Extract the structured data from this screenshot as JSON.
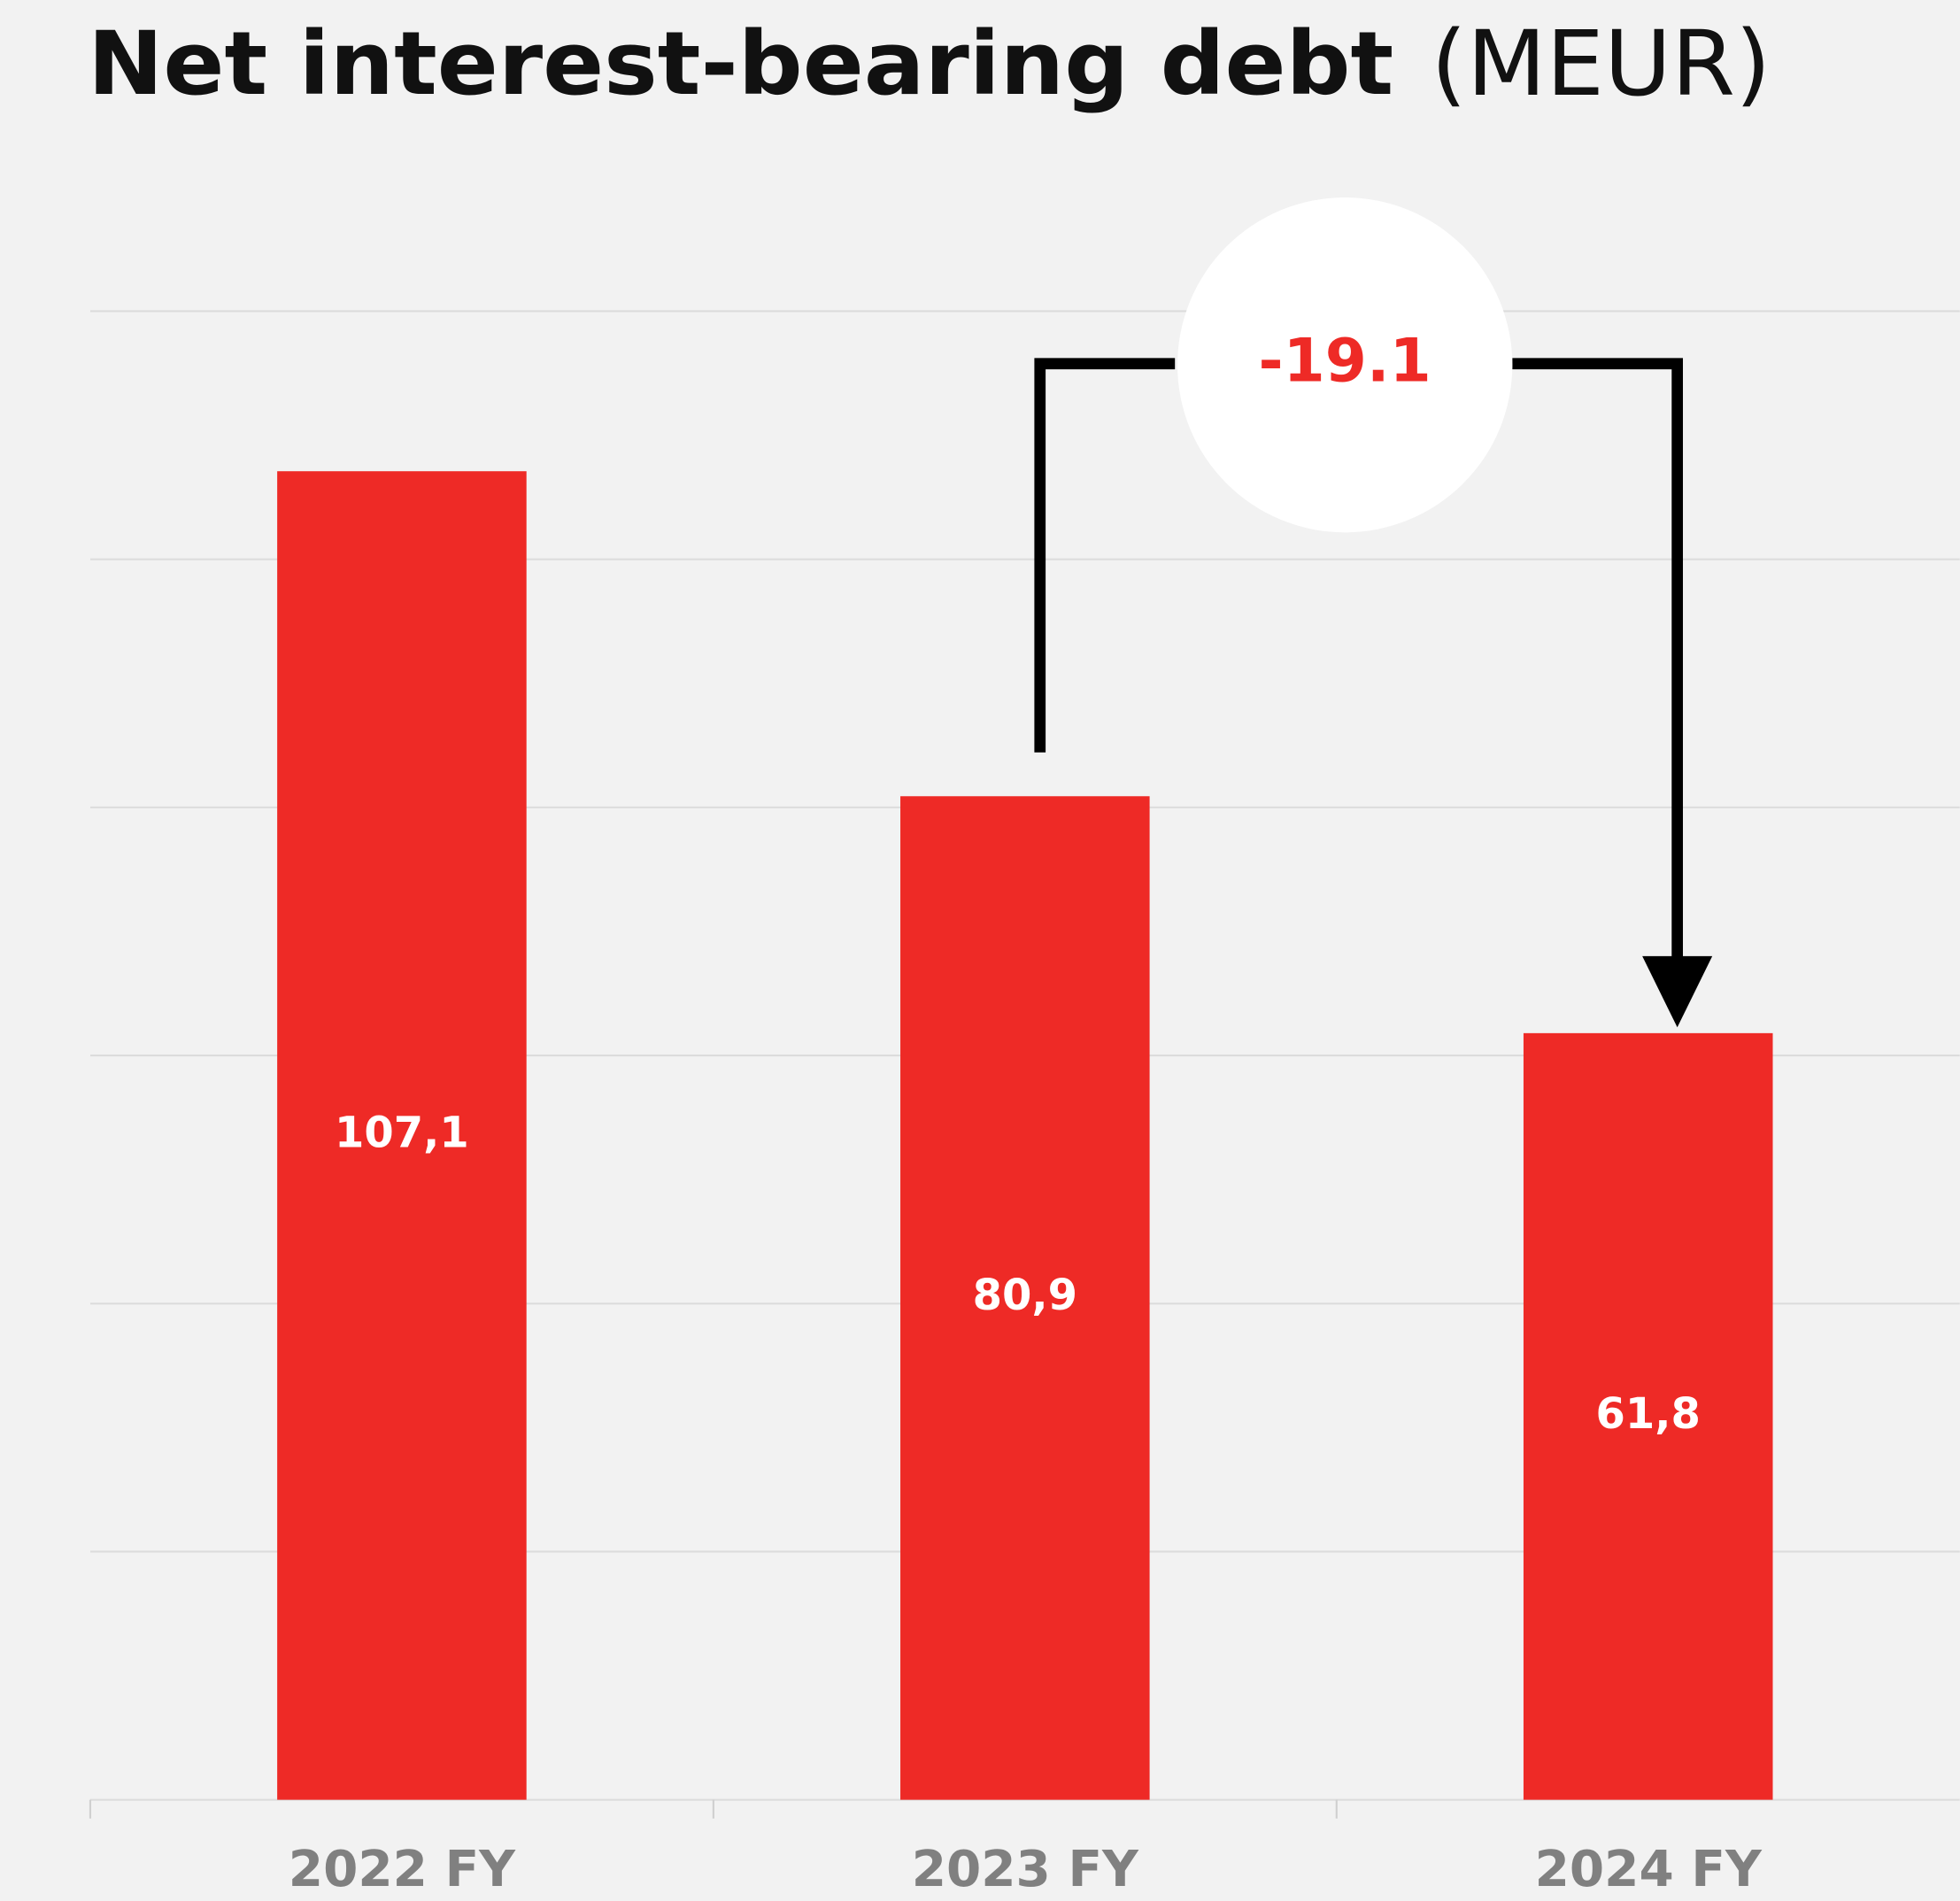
{
  "chart_data": {
    "type": "bar",
    "title": "Net interest-bearing debt",
    "title_unit": "(MEUR)",
    "categories": [
      "2022 FY",
      "2023 FY",
      "2024 FY"
    ],
    "values": [
      107.1,
      80.9,
      61.8
    ],
    "value_labels": [
      "107,1",
      "80,9",
      "61,8"
    ],
    "color": "#ee2a26",
    "ylim": [
      0,
      120
    ],
    "yticks": [
      0,
      20,
      40,
      60,
      80,
      100,
      120
    ],
    "grid": true,
    "annotation": "-19.1"
  }
}
